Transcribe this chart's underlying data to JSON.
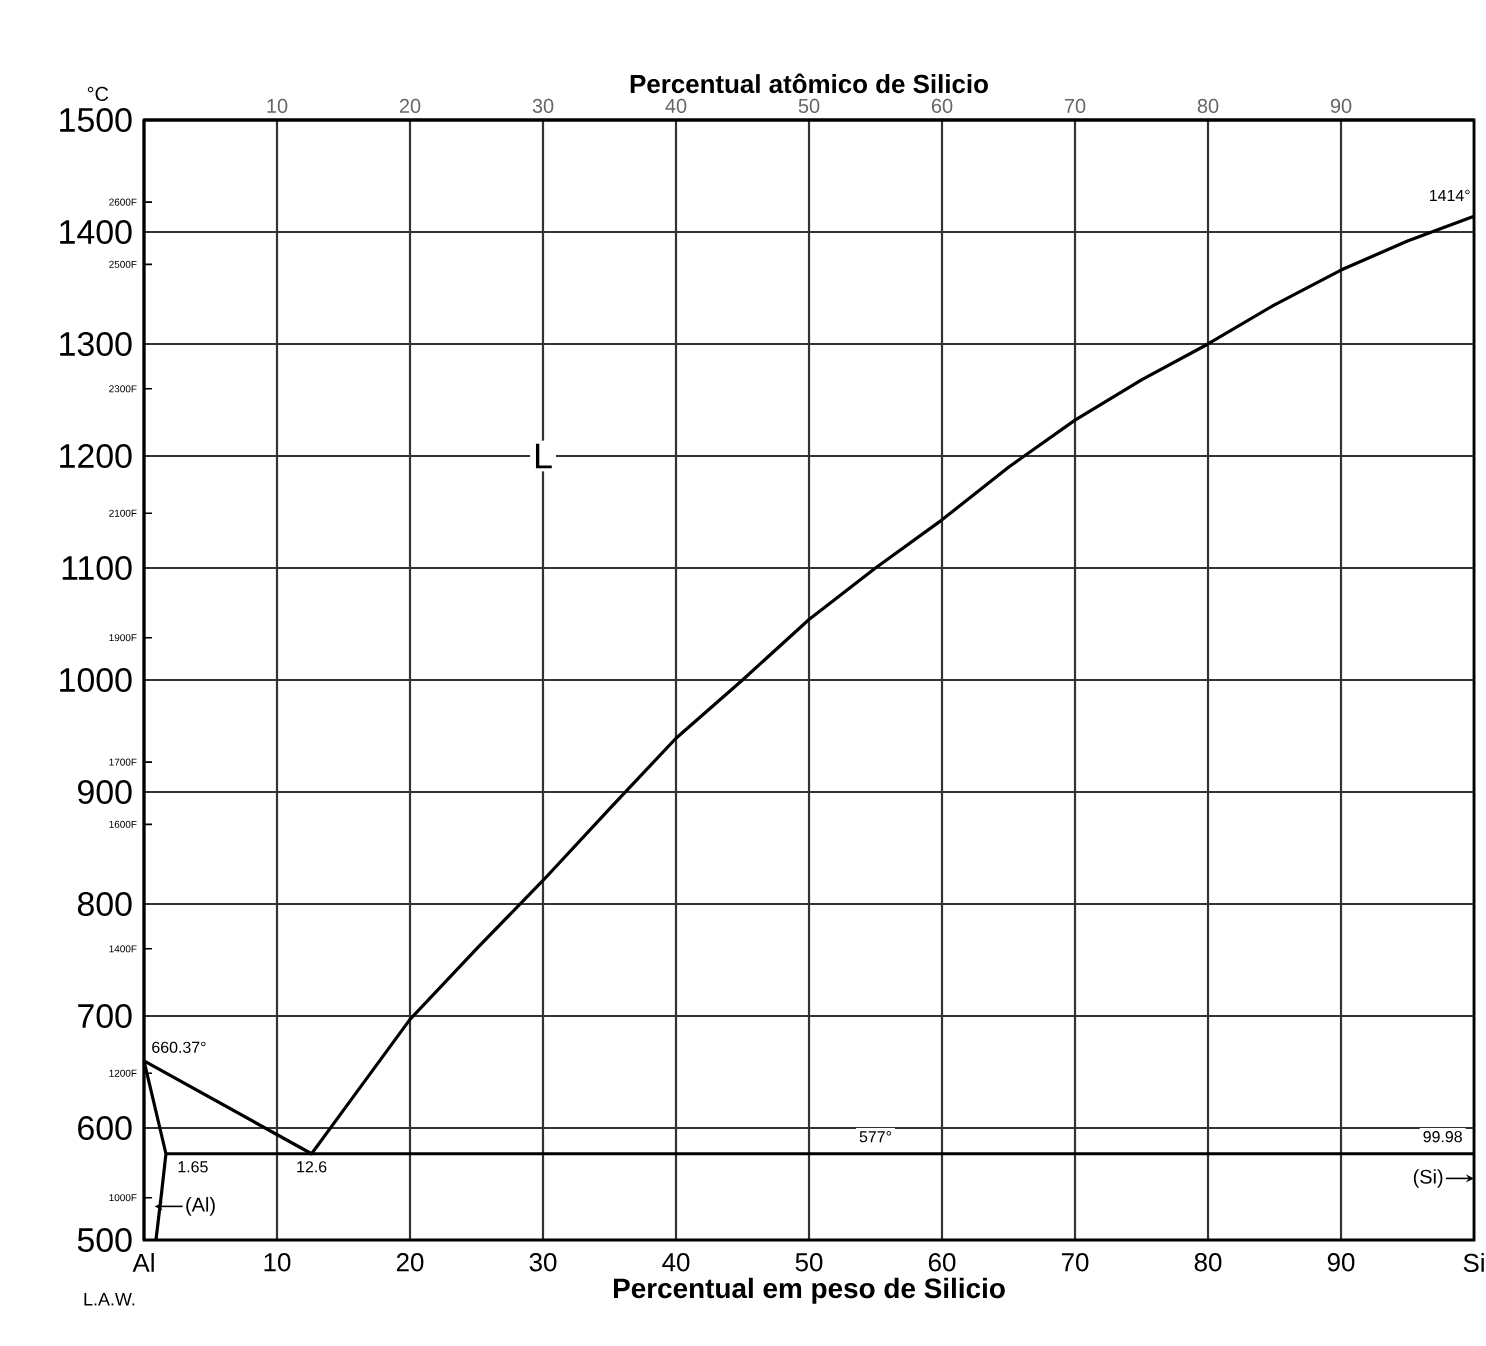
{
  "chart_data": {
    "type": "line",
    "xlabel": "Percentual em peso de Silicio",
    "x2label": "Percentual atômico de Silicio",
    "ylabel": "°C",
    "xlim": [
      0,
      100
    ],
    "xticks": [
      {
        "value": 0,
        "label": "Al"
      },
      10,
      20,
      30,
      40,
      50,
      60,
      70,
      80,
      90,
      {
        "value": 100,
        "label": "Si"
      }
    ],
    "x2lim": [
      0,
      100
    ],
    "x2ticks": [
      10,
      20,
      30,
      40,
      50,
      60,
      70,
      80,
      90
    ],
    "ylim": [
      500,
      1500
    ],
    "yticks": [
      500,
      600,
      700,
      800,
      900,
      1000,
      1100,
      1200,
      1300,
      1400,
      1500
    ],
    "y2lim": [
      932,
      2732
    ],
    "y2ticks": [
      {
        "value": 1000,
        "label": "1000F"
      },
      {
        "value": 1200,
        "label": "1200F"
      },
      {
        "value": 1400,
        "label": "1400F"
      },
      {
        "value": 1600,
        "label": "1600F"
      },
      {
        "value": 1700,
        "label": "1700F"
      },
      {
        "value": 1900,
        "label": "1900F"
      },
      {
        "value": 2100,
        "label": "2100F"
      },
      {
        "value": 2300,
        "label": "2300F"
      },
      {
        "value": 2500,
        "label": "2500F"
      },
      {
        "value": 2600,
        "label": "2600F"
      }
    ],
    "grid": true,
    "marker": "none",
    "line_style": "solid",
    "series": [
      {
        "color": "#000000",
        "x": [
          0,
          12.6,
          15,
          20,
          25,
          30,
          35,
          40,
          45,
          50,
          55,
          60,
          65,
          70,
          75,
          80,
          85,
          90,
          95,
          100
        ],
        "values": [
          660,
          577,
          616,
          697,
          760,
          821,
          885,
          948,
          1000,
          1054,
          1100,
          1143,
          1190,
          1232,
          1268,
          1300,
          1335,
          1366,
          1392,
          1414
        ]
      },
      {
        "color": "#000000",
        "x": [
          0,
          1.65,
          1.3,
          0.9
        ],
        "values": [
          660,
          577,
          540,
          500
        ]
      },
      {
        "color": "#000000",
        "x": [
          1.65,
          100
        ],
        "values": [
          577,
          577
        ]
      }
    ],
    "annotations": [
      {
        "text": "L",
        "x": 30,
        "y": 1200
      },
      {
        "text": "660.37°",
        "x": 0,
        "y": 660.37
      },
      {
        "text": "1414°",
        "x": 100,
        "y": 1414
      },
      {
        "text": "1.65",
        "x": 1.65,
        "y": 577
      },
      {
        "text": "12.6",
        "x": 12.6,
        "y": 577
      },
      {
        "text": "577°",
        "x": 55,
        "y": 577
      },
      {
        "text": "99.98",
        "x": 100,
        "y": 577
      },
      "(Al)",
      "(Si)",
      "L.A.W."
    ]
  }
}
